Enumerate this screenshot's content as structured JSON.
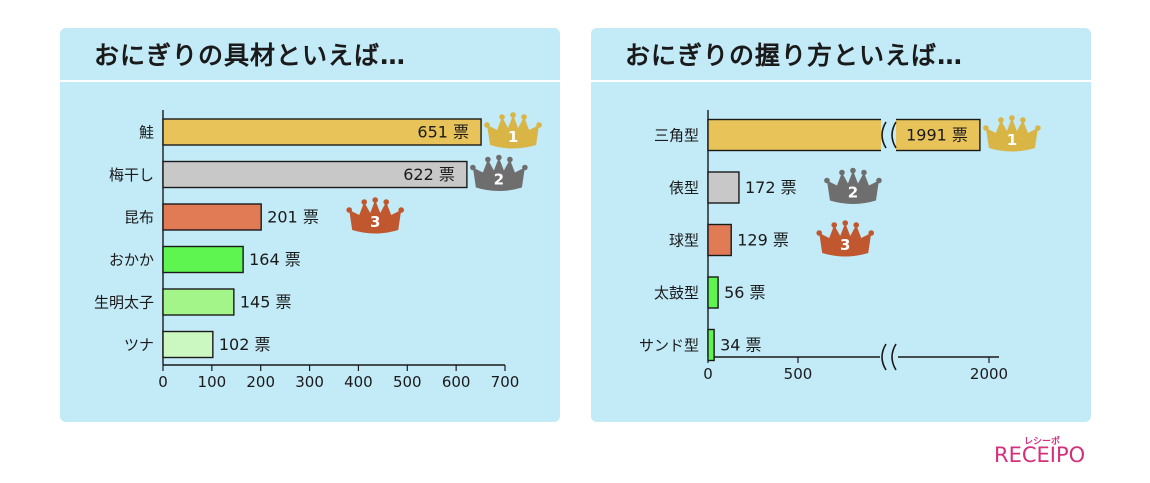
{
  "panels": {
    "left_title": "おにぎりの具材といえば…",
    "right_title": "おにぎりの握り方といえば…"
  },
  "vote_unit": "票",
  "logo": {
    "text": "RECEIPO",
    "sub": "レシーポ"
  },
  "colors": {
    "panel_bg": "#c3eaf7",
    "gold": "#e8c35a",
    "silver": "#c8c8c8",
    "bronze": "#e07b55",
    "green_1": "#5ef551",
    "green_2": "#a3f58a",
    "green_3": "#cbf7c0",
    "crown_gold": "#d9b545",
    "crown_silver": "#6e6e6e",
    "crown_bronze": "#c0572e",
    "logo_pink": "#d4307b"
  },
  "chart_data": [
    {
      "type": "bar",
      "orientation": "horizontal",
      "title": "おにぎりの具材といえば…",
      "categories": [
        "鮭",
        "梅干し",
        "昆布",
        "おかか",
        "生明太子",
        "ツナ"
      ],
      "values": [
        651,
        622,
        201,
        164,
        145,
        102
      ],
      "bar_colors": [
        "gold",
        "silver",
        "bronze",
        "green_1",
        "green_2",
        "green_3"
      ],
      "ranks": [
        "1",
        "2",
        "3",
        "",
        "",
        ""
      ],
      "xlim": [
        0,
        700
      ],
      "ticks": [
        "0",
        "100",
        "200",
        "300",
        "400",
        "500",
        "600",
        "700"
      ],
      "tick_values": [
        0,
        100,
        200,
        300,
        400,
        500,
        600,
        700
      ],
      "grid": false,
      "broken_axis": false
    },
    {
      "type": "bar",
      "orientation": "horizontal",
      "title": "おにぎりの握り方といえば…",
      "categories": [
        "三角型",
        "俵型",
        "球型",
        "太鼓型",
        "サンド型"
      ],
      "values": [
        1991,
        172,
        129,
        56,
        34
      ],
      "bar_colors": [
        "gold",
        "silver",
        "bronze",
        "green_1",
        "green_1"
      ],
      "ranks": [
        "1",
        "2",
        "3",
        "",
        ""
      ],
      "xlim": [
        0,
        2000
      ],
      "ticks": [
        "0",
        "500",
        "2000"
      ],
      "tick_values": [
        0,
        500,
        2000
      ],
      "grid": false,
      "broken_axis": true,
      "axis_break": [
        600,
        1900
      ]
    }
  ]
}
